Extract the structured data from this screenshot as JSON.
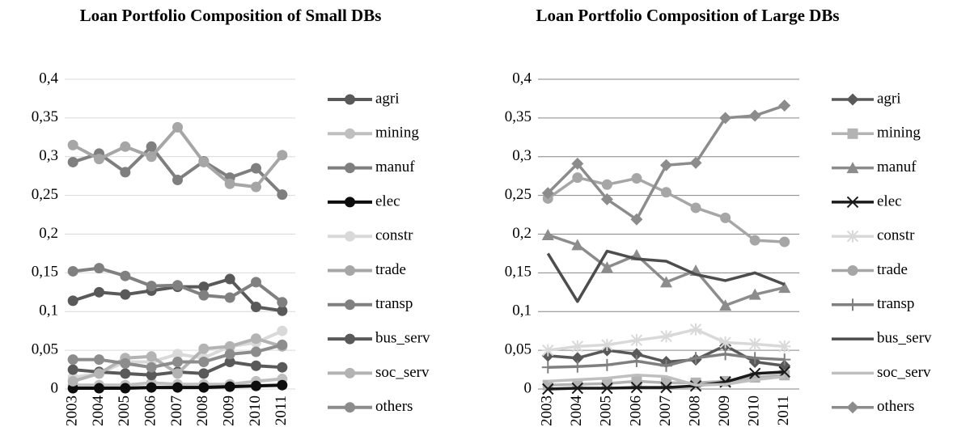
{
  "chart_data": [
    {
      "type": "line",
      "title": "Loan Portfolio Composition of Small DBs",
      "categories": [
        "2003",
        "2004",
        "2005",
        "2006",
        "2007",
        "2008",
        "2009",
        "2010",
        "2011"
      ],
      "ylim": [
        0,
        0.4
      ],
      "yticks": [
        0,
        {
          "value": 0.05,
          "label": "0,05"
        },
        {
          "value": 0.1,
          "label": "0,1"
        },
        {
          "value": 0.15,
          "label": "0,15"
        },
        {
          "value": 0.2,
          "label": "0,2"
        },
        {
          "value": 0.25,
          "label": "0,25"
        },
        {
          "value": 0.3,
          "label": "0,3"
        },
        {
          "value": 0.35,
          "label": "0,35"
        },
        {
          "value": 0.4,
          "label": "0,4"
        }
      ],
      "grid": true,
      "grid_color": "#d9d9d9",
      "legend": "right",
      "series": [
        {
          "name": "agri",
          "color": "#595959",
          "marker": "circle",
          "values": [
            0.114,
            0.125,
            0.122,
            0.127,
            0.132,
            0.132,
            0.142,
            0.106,
            0.101
          ]
        },
        {
          "name": "mining",
          "color": "#bfbfbf",
          "marker": "circle",
          "values": [
            0.005,
            0.005,
            0.005,
            0.008,
            0.006,
            0.006,
            0.006,
            0.01,
            0.013
          ]
        },
        {
          "name": "manuf",
          "color": "#7f7f7f",
          "marker": "circle",
          "values": [
            0.293,
            0.304,
            0.28,
            0.313,
            0.27,
            0.294,
            0.273,
            0.285,
            0.251
          ]
        },
        {
          "name": "elec",
          "color": "#0d0d0d",
          "marker": "circle",
          "values": [
            0.001,
            0.001,
            0.001,
            0.002,
            0.002,
            0.002,
            0.003,
            0.004,
            0.005
          ]
        },
        {
          "name": "constr",
          "color": "#d9d9d9",
          "marker": "circle",
          "values": [
            0.015,
            0.02,
            0.035,
            0.035,
            0.045,
            0.04,
            0.055,
            0.06,
            0.075
          ]
        },
        {
          "name": "trade",
          "color": "#a6a6a6",
          "marker": "circle",
          "values": [
            0.315,
            0.297,
            0.313,
            0.3,
            0.338,
            0.293,
            0.265,
            0.261,
            0.302
          ]
        },
        {
          "name": "transp",
          "color": "#808080",
          "marker": "circle",
          "values": [
            0.152,
            0.156,
            0.146,
            0.133,
            0.134,
            0.121,
            0.118,
            0.138,
            0.112
          ]
        },
        {
          "name": "bus_serv",
          "color": "#595959",
          "marker": "circle",
          "values": [
            0.025,
            0.022,
            0.02,
            0.018,
            0.022,
            0.02,
            0.035,
            0.03,
            0.028
          ]
        },
        {
          "name": "soc_serv",
          "color": "#b3b3b3",
          "marker": "circle",
          "values": [
            0.01,
            0.02,
            0.04,
            0.042,
            0.02,
            0.052,
            0.055,
            0.065,
            0.055
          ]
        },
        {
          "name": "others",
          "color": "#8c8c8c",
          "marker": "circle",
          "values": [
            0.038,
            0.038,
            0.033,
            0.028,
            0.035,
            0.035,
            0.045,
            0.048,
            0.057
          ]
        }
      ]
    },
    {
      "type": "line",
      "title": "Loan Portfolio Composition of Large DBs",
      "categories": [
        "2003",
        "2004",
        "2005",
        "2006",
        "2007",
        "2008",
        "2009",
        "2010",
        "2011"
      ],
      "ylim": [
        0,
        0.4
      ],
      "yticks": [
        0,
        {
          "value": 0.05,
          "label": "0,05"
        },
        {
          "value": 0.1,
          "label": "0,1"
        },
        {
          "value": 0.15,
          "label": "0,15"
        },
        {
          "value": 0.2,
          "label": "0,2"
        },
        {
          "value": 0.25,
          "label": "0,25"
        },
        {
          "value": 0.3,
          "label": "0,3"
        },
        {
          "value": 0.35,
          "label": "0,35"
        },
        {
          "value": 0.4,
          "label": "0,4"
        }
      ],
      "grid": true,
      "grid_color": "#868686",
      "legend": "right",
      "series": [
        {
          "name": "agri",
          "color": "#595959",
          "marker": "diamond",
          "values": [
            0.043,
            0.04,
            0.05,
            0.045,
            0.035,
            0.038,
            0.056,
            0.035,
            0.03
          ]
        },
        {
          "name": "mining",
          "color": "#b3b3b3",
          "marker": "square",
          "values": [
            0.005,
            0.006,
            0.007,
            0.01,
            0.008,
            0.008,
            0.01,
            0.015,
            0.018
          ]
        },
        {
          "name": "manuf",
          "color": "#8c8c8c",
          "marker": "triangle",
          "values": [
            0.199,
            0.186,
            0.157,
            0.173,
            0.138,
            0.153,
            0.108,
            0.122,
            0.131
          ]
        },
        {
          "name": "elec",
          "color": "#1a1a1a",
          "marker": "x",
          "values": [
            0,
            0.001,
            0.001,
            0.002,
            0.002,
            0.004,
            0.009,
            0.02,
            0.022
          ]
        },
        {
          "name": "constr",
          "color": "#d9d9d9",
          "marker": "star",
          "values": [
            0.05,
            0.055,
            0.057,
            0.063,
            0.068,
            0.077,
            0.06,
            0.058,
            0.055
          ]
        },
        {
          "name": "trade",
          "color": "#a6a6a6",
          "marker": "circle",
          "values": [
            0.246,
            0.273,
            0.264,
            0.272,
            0.254,
            0.234,
            0.221,
            0.192,
            0.19
          ]
        },
        {
          "name": "transp",
          "color": "#7f7f7f",
          "marker": "plus",
          "values": [
            0.028,
            0.029,
            0.031,
            0.036,
            0.03,
            0.04,
            0.045,
            0.04,
            0.038
          ]
        },
        {
          "name": "bus_serv",
          "color": "#4d4d4d",
          "marker": "none",
          "values": [
            0.175,
            0.113,
            0.178,
            0.168,
            0.165,
            0.148,
            0.14,
            0.15,
            0.135
          ]
        },
        {
          "name": "soc_serv",
          "color": "#bfbfbf",
          "marker": "none",
          "values": [
            0.01,
            0.012,
            0.014,
            0.018,
            0.016,
            0.005,
            0.006,
            0.012,
            0.016
          ]
        },
        {
          "name": "others",
          "color": "#8c8c8c",
          "marker": "diamond",
          "values": [
            0.253,
            0.291,
            0.245,
            0.219,
            0.289,
            0.292,
            0.35,
            0.353,
            0.366
          ]
        }
      ]
    }
  ]
}
